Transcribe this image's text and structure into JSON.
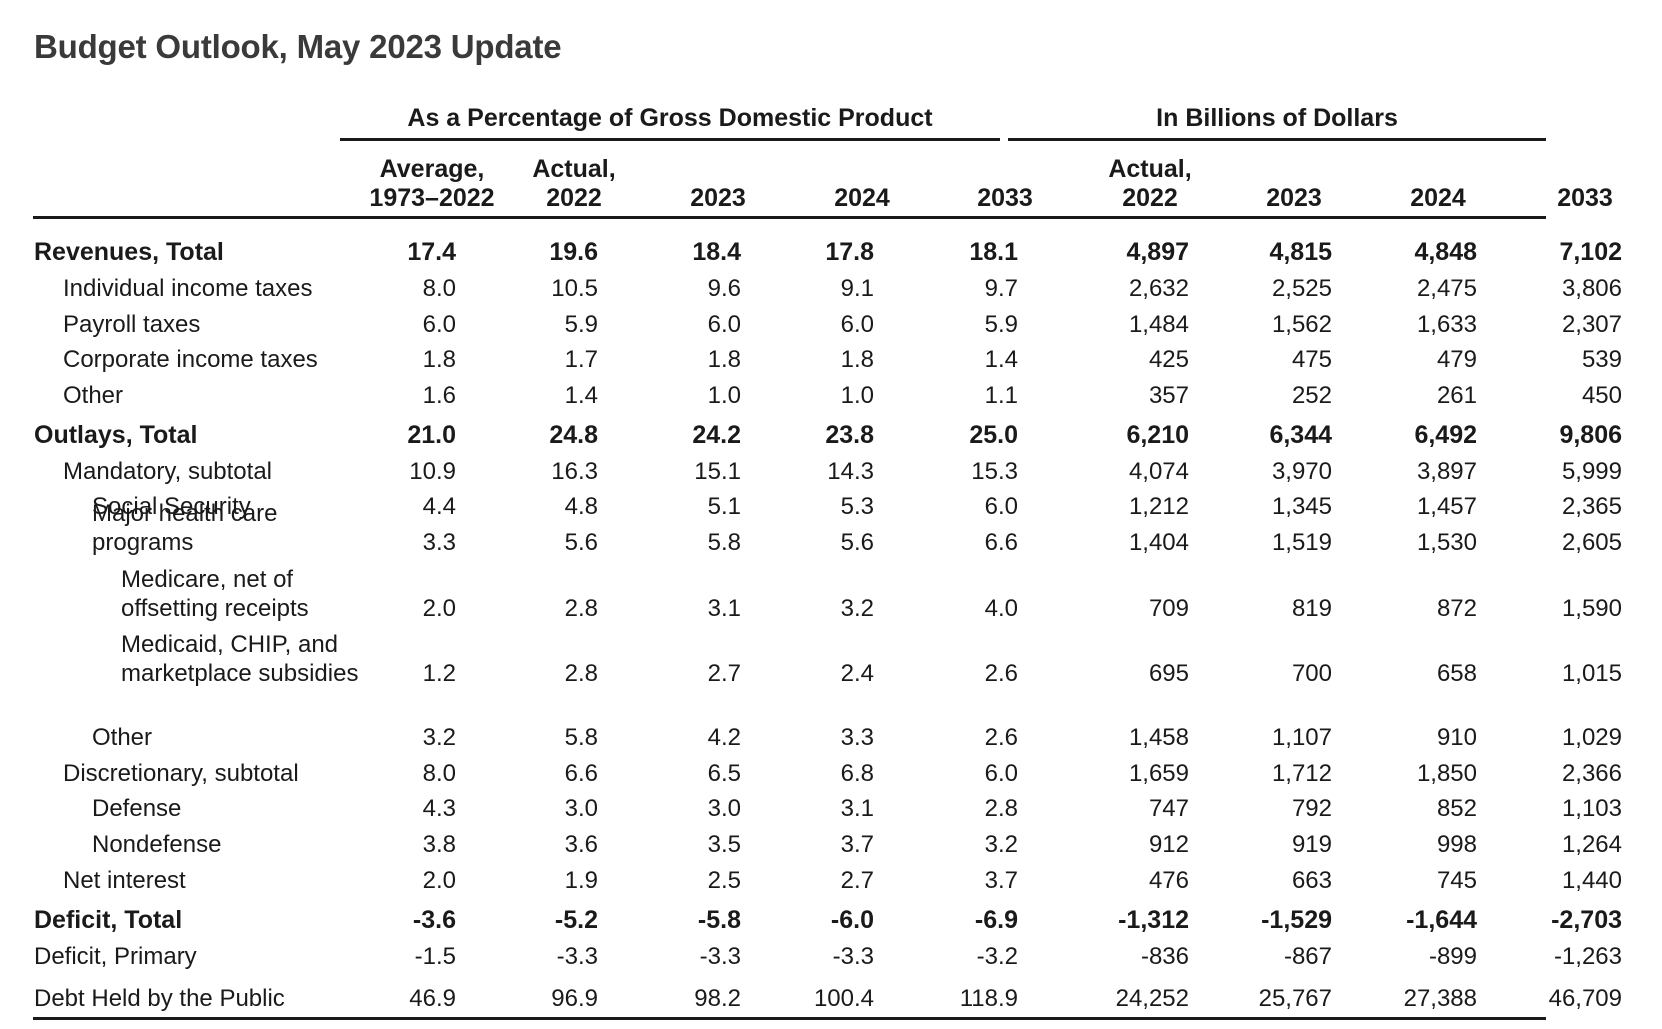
{
  "title": "Budget Outlook, May 2023 Update",
  "groups": [
    "As a Percentage of Gross Domestic Product",
    "In Billions of Dollars"
  ],
  "columns": [
    [
      "Average,",
      "1973–2022"
    ],
    [
      "Actual,",
      "2022"
    ],
    [
      "",
      "2023"
    ],
    [
      "",
      "2024"
    ],
    [
      "",
      "2033"
    ],
    [
      "Actual,",
      "2022"
    ],
    [
      "",
      "2023"
    ],
    [
      "",
      "2024"
    ],
    [
      "",
      "2033"
    ]
  ],
  "rows": [
    {
      "label": [
        "Revenues, Total"
      ],
      "indent": 0,
      "bold": true,
      "values": [
        "17.4",
        "19.6",
        "18.4",
        "17.8",
        "18.1",
        "4,897",
        "4,815",
        "4,848",
        "7,102"
      ]
    },
    {
      "label": [
        "Individual income taxes"
      ],
      "indent": 1,
      "bold": false,
      "values": [
        "8.0",
        "10.5",
        "9.6",
        "9.1",
        "9.7",
        "2,632",
        "2,525",
        "2,475",
        "3,806"
      ]
    },
    {
      "label": [
        "Payroll taxes"
      ],
      "indent": 1,
      "bold": false,
      "values": [
        "6.0",
        "5.9",
        "6.0",
        "6.0",
        "5.9",
        "1,484",
        "1,562",
        "1,633",
        "2,307"
      ]
    },
    {
      "label": [
        "Corporate income taxes"
      ],
      "indent": 1,
      "bold": false,
      "values": [
        "1.8",
        "1.7",
        "1.8",
        "1.8",
        "1.4",
        "425",
        "475",
        "479",
        "539"
      ]
    },
    {
      "label": [
        "Other"
      ],
      "indent": 1,
      "bold": false,
      "values": [
        "1.6",
        "1.4",
        "1.0",
        "1.0",
        "1.1",
        "357",
        "252",
        "261",
        "450"
      ]
    },
    {
      "label": [
        "Outlays, Total"
      ],
      "indent": 0,
      "bold": true,
      "values": [
        "21.0",
        "24.8",
        "24.2",
        "23.8",
        "25.0",
        "6,210",
        "6,344",
        "6,492",
        "9,806"
      ]
    },
    {
      "label": [
        "Mandatory, subtotal"
      ],
      "indent": 1,
      "bold": false,
      "values": [
        "10.9",
        "16.3",
        "15.1",
        "14.3",
        "15.3",
        "4,074",
        "3,970",
        "3,897",
        "5,999"
      ]
    },
    {
      "label": [
        "Social Security"
      ],
      "indent": 2,
      "bold": false,
      "values": [
        "4.4",
        "4.8",
        "5.1",
        "5.3",
        "6.0",
        "1,212",
        "1,345",
        "1,457",
        "2,365"
      ]
    },
    {
      "label": [
        "Major health care",
        "programs"
      ],
      "indent": 2,
      "bold": false,
      "values": [
        "3.3",
        "5.6",
        "5.8",
        "5.6",
        "6.6",
        "1,404",
        "1,519",
        "1,530",
        "2,605"
      ]
    },
    {
      "label": [
        "Medicare, net of",
        "offsetting receipts"
      ],
      "indent": 3,
      "bold": false,
      "values": [
        "2.0",
        "2.8",
        "3.1",
        "3.2",
        "4.0",
        "709",
        "819",
        "872",
        "1,590"
      ]
    },
    {
      "label": [
        "Medicaid, CHIP, and",
        "marketplace subsidies"
      ],
      "indent": 3,
      "bold": false,
      "values": [
        "1.2",
        "2.8",
        "2.7",
        "2.4",
        "2.6",
        "695",
        "700",
        "658",
        "1,015"
      ]
    },
    {
      "label": [
        "Other"
      ],
      "indent": 2,
      "bold": false,
      "values": [
        "3.2",
        "5.8",
        "4.2",
        "3.3",
        "2.6",
        "1,458",
        "1,107",
        "910",
        "1,029"
      ]
    },
    {
      "label": [
        "Discretionary, subtotal"
      ],
      "indent": 1,
      "bold": false,
      "values": [
        "8.0",
        "6.6",
        "6.5",
        "6.8",
        "6.0",
        "1,659",
        "1,712",
        "1,850",
        "2,366"
      ]
    },
    {
      "label": [
        "Defense"
      ],
      "indent": 2,
      "bold": false,
      "values": [
        "4.3",
        "3.0",
        "3.0",
        "3.1",
        "2.8",
        "747",
        "792",
        "852",
        "1,103"
      ]
    },
    {
      "label": [
        "Nondefense"
      ],
      "indent": 2,
      "bold": false,
      "values": [
        "3.8",
        "3.6",
        "3.5",
        "3.7",
        "3.2",
        "912",
        "919",
        "998",
        "1,264"
      ]
    },
    {
      "label": [
        "Net interest"
      ],
      "indent": 1,
      "bold": false,
      "values": [
        "2.0",
        "1.9",
        "2.5",
        "2.7",
        "3.7",
        "476",
        "663",
        "745",
        "1,440"
      ]
    },
    {
      "label": [
        "Deficit, Total"
      ],
      "indent": 0,
      "bold": true,
      "values": [
        "-3.6",
        "-5.2",
        "-5.8",
        "-6.0",
        "-6.9",
        "-1,312",
        "-1,529",
        "-1,644",
        "-2,703"
      ]
    },
    {
      "label": [
        "Deficit, Primary"
      ],
      "indent": 0,
      "bold": false,
      "values": [
        "-1.5",
        "-3.3",
        "-3.3",
        "-3.3",
        "-3.2",
        "-836",
        "-867",
        "-899",
        "-1,263"
      ]
    },
    {
      "label": [
        "Debt Held by the Public"
      ],
      "indent": 0,
      "bold": false,
      "values": [
        "46.9",
        "96.9",
        "98.2",
        "100.4",
        "118.9",
        "24,252",
        "25,767",
        "27,388",
        "46,709"
      ]
    }
  ]
}
